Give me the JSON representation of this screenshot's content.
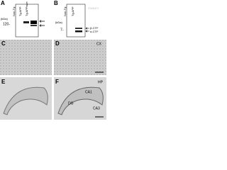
{
  "panels": {
    "a": {
      "label": "A",
      "unit": "(kDa)",
      "marker": "120-",
      "lanes": [
        "Non-Tg",
        "Tg APP",
        "Tg APPswe"
      ]
    },
    "b": {
      "label": "B",
      "unit": "(kDa)",
      "marker": "7-",
      "lanes": [
        "Non-Tg",
        "Tg APP"
      ],
      "bands": [
        "β-CTF",
        "α-CTF"
      ]
    },
    "c": {
      "label": "C"
    },
    "d": {
      "label": "D",
      "region": "CX"
    },
    "e": {
      "label": "E"
    },
    "f": {
      "label": "F",
      "region": "HP",
      "areas": [
        "CA1",
        "DG",
        "CA3"
      ]
    }
  },
  "watermark": "©WILEY"
}
